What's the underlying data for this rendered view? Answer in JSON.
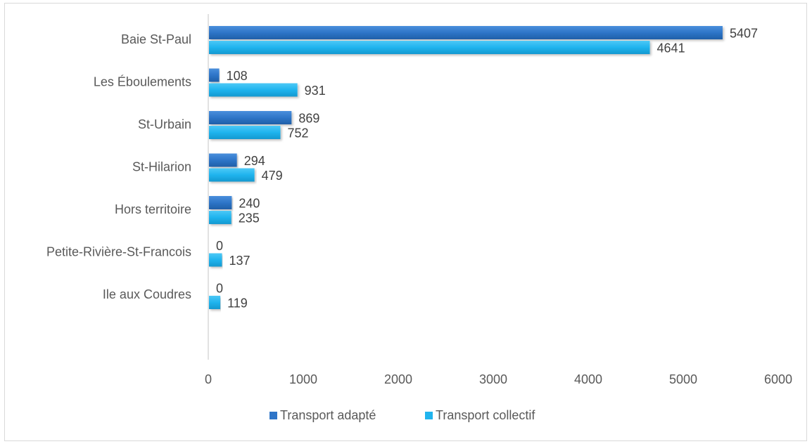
{
  "chart_data": {
    "type": "bar",
    "orientation": "horizontal",
    "categories": [
      "Baie St-Paul",
      "Les Éboulements",
      "St-Urbain",
      "St-Hilarion",
      "Hors territoire",
      "Petite-Rivière-St-Francois",
      "Ile aux Coudres"
    ],
    "series": [
      {
        "name": "Transport adapté",
        "values": [
          5407,
          108,
          869,
          294,
          240,
          0,
          0
        ],
        "color": "#2e75c8"
      },
      {
        "name": "Transport collectif",
        "values": [
          4641,
          931,
          752,
          479,
          235,
          137,
          119
        ],
        "color": "#20b4ee"
      }
    ],
    "xlim": [
      0,
      6000
    ],
    "xticks": [
      "0",
      "1000",
      "2000",
      "3000",
      "4000",
      "5000",
      "6000"
    ],
    "data_labels": true,
    "grid": false,
    "legend": "bottom"
  },
  "colors": {
    "axis": "#d9d9d9",
    "text": "#595959"
  }
}
